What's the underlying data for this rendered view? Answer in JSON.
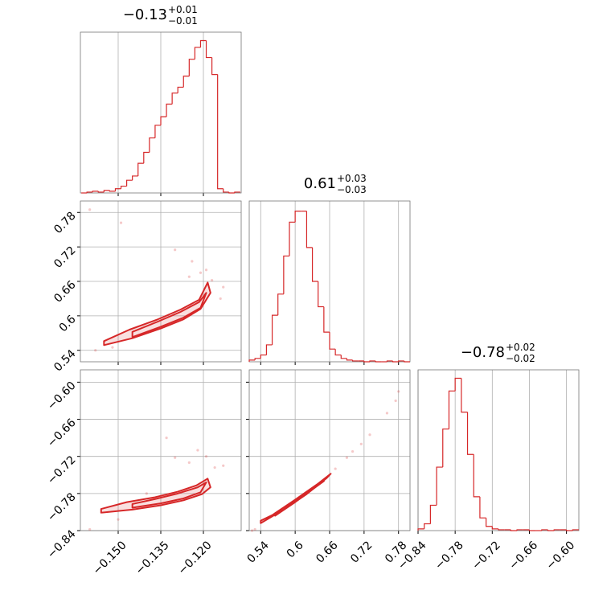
{
  "chart_data": {
    "type": "corner",
    "color": "#d62728",
    "grid": true,
    "params": [
      {
        "title": "−0.13",
        "plus": "+0.01",
        "minus": "−0.01",
        "lim": [
          -0.1633,
          -0.1067
        ],
        "ticks": [
          {
            "value": -0.15,
            "label": "−0.150"
          },
          {
            "value": -0.135,
            "label": "−0.135"
          },
          {
            "value": -0.12,
            "label": "−0.120"
          }
        ],
        "bins": [
          -0.163,
          -0.161,
          -0.159,
          -0.157,
          -0.155,
          -0.153,
          -0.151,
          -0.149,
          -0.147,
          -0.145,
          -0.143,
          -0.141,
          -0.139,
          -0.137,
          -0.135,
          -0.133,
          -0.131,
          -0.129,
          -0.127,
          -0.125,
          -0.123,
          -0.121,
          -0.119,
          -0.117,
          -0.115,
          -0.113,
          -0.111,
          -0.109,
          -0.107
        ],
        "counts": [
          0,
          1,
          2,
          1,
          3,
          2,
          5,
          8,
          15,
          20,
          35,
          48,
          65,
          80,
          90,
          105,
          118,
          125,
          138,
          158,
          172,
          180,
          160,
          140,
          5,
          1,
          0,
          1
        ],
        "ylim": [
          0,
          190
        ]
      },
      {
        "title": "0.61",
        "plus": "+0.03",
        "minus": "−0.03",
        "lim": [
          0.52,
          0.8
        ],
        "ticks": [
          0.54,
          0.6,
          0.66,
          0.72,
          0.78
        ],
        "bins": [
          0.52,
          0.53,
          0.54,
          0.55,
          0.56,
          0.57,
          0.58,
          0.59,
          0.6,
          0.61,
          0.62,
          0.63,
          0.64,
          0.65,
          0.66,
          0.67,
          0.68,
          0.69,
          0.7,
          0.71,
          0.72,
          0.73,
          0.74,
          0.75,
          0.76,
          0.77,
          0.78,
          0.79,
          0.8
        ],
        "counts": [
          2,
          4,
          8,
          20,
          55,
          80,
          125,
          165,
          178,
          178,
          135,
          95,
          65,
          35,
          15,
          8,
          4,
          2,
          1,
          1,
          0,
          1,
          0,
          0,
          1,
          0,
          1,
          0
        ],
        "ylim": [
          0,
          190
        ]
      },
      {
        "title": "−0.78",
        "plus": "+0.02",
        "minus": "−0.02",
        "lim": [
          -0.84,
          -0.58
        ],
        "ticks": [
          {
            "value": -0.84,
            "label": "−0.84"
          },
          {
            "value": -0.78,
            "label": "−0.78"
          },
          {
            "value": -0.72,
            "label": "−0.72"
          },
          {
            "value": -0.66,
            "label": "−0.66"
          },
          {
            "value": -0.6,
            "label": "−0.60"
          }
        ],
        "bins": [
          -0.84,
          -0.83,
          -0.82,
          -0.81,
          -0.8,
          -0.79,
          -0.78,
          -0.77,
          -0.76,
          -0.75,
          -0.74,
          -0.73,
          -0.72,
          -0.71,
          -0.7,
          -0.69,
          -0.68,
          -0.67,
          -0.66,
          -0.65,
          -0.64,
          -0.63,
          -0.62,
          -0.61,
          -0.6,
          -0.59,
          -0.58
        ],
        "counts": [
          2,
          8,
          30,
          75,
          120,
          165,
          180,
          140,
          90,
          40,
          15,
          5,
          2,
          1,
          1,
          0,
          1,
          1,
          0,
          0,
          1,
          0,
          1,
          1,
          0,
          1
        ],
        "ylim": [
          0,
          190
        ]
      }
    ],
    "pairs": [
      {
        "xparam": 0,
        "yparam": 1,
        "contours": [
          {
            "x": [
              -0.155,
              -0.145,
              -0.135,
              -0.127,
              -0.121,
              -0.1175,
              -0.1185,
              -0.1215,
              -0.128,
              -0.136,
              -0.146,
              -0.155
            ],
            "y": [
              0.549,
              0.561,
              0.578,
              0.594,
              0.612,
              0.64,
              0.658,
              0.628,
              0.611,
              0.594,
              0.576,
              0.556
            ]
          },
          {
            "x": [
              -0.145,
              -0.135,
              -0.127,
              -0.121,
              -0.119,
              -0.1215,
              -0.128,
              -0.136,
              -0.145
            ],
            "y": [
              0.563,
              0.581,
              0.597,
              0.614,
              0.64,
              0.624,
              0.607,
              0.59,
              0.572
            ]
          }
        ],
        "points": {
          "x": [
            -0.158,
            -0.152,
            -0.149,
            -0.13,
            -0.125,
            -0.121,
            -0.119,
            -0.117,
            -0.114,
            -0.113,
            -0.124,
            -0.16
          ],
          "y": [
            0.54,
            0.545,
            0.762,
            0.715,
            0.668,
            0.675,
            0.68,
            0.662,
            0.63,
            0.65,
            0.695,
            0.785
          ]
        }
      },
      {
        "xparam": 0,
        "yparam": 2,
        "contours": [
          {
            "x": [
              -0.156,
              -0.145,
              -0.135,
              -0.127,
              -0.1205,
              -0.1175,
              -0.1185,
              -0.1225,
              -0.129,
              -0.137,
              -0.147,
              -0.156
            ],
            "y": [
              -0.811,
              -0.806,
              -0.799,
              -0.791,
              -0.781,
              -0.77,
              -0.756,
              -0.767,
              -0.777,
              -0.786,
              -0.794,
              -0.805
            ]
          },
          {
            "x": [
              -0.145,
              -0.135,
              -0.127,
              -0.121,
              -0.119,
              -0.122,
              -0.129,
              -0.137,
              -0.145
            ],
            "y": [
              -0.803,
              -0.796,
              -0.788,
              -0.778,
              -0.762,
              -0.77,
              -0.78,
              -0.789,
              -0.797
            ]
          }
        ],
        "points": {
          "x": [
            -0.16,
            -0.15,
            -0.133,
            -0.13,
            -0.122,
            -0.119,
            -0.116,
            -0.113,
            -0.125,
            -0.14
          ],
          "y": [
            -0.838,
            -0.822,
            -0.69,
            -0.722,
            -0.71,
            -0.72,
            -0.738,
            -0.735,
            -0.73,
            -0.78
          ]
        }
      },
      {
        "xparam": 1,
        "yparam": 2,
        "contours": [
          {
            "x": [
              0.54,
              0.58,
              0.62,
              0.655,
              0.662,
              0.64,
              0.6,
              0.56,
              0.54
            ],
            "y": [
              -0.828,
              -0.806,
              -0.781,
              -0.755,
              -0.748,
              -0.764,
              -0.79,
              -0.815,
              -0.824
            ]
          },
          {
            "x": [
              0.565,
              0.6,
              0.635,
              0.65,
              0.625,
              0.59,
              0.565
            ],
            "y": [
              -0.816,
              -0.794,
              -0.77,
              -0.76,
              -0.776,
              -0.797,
              -0.812
            ]
          }
        ],
        "points": {
          "x": [
            0.525,
            0.53,
            0.67,
            0.69,
            0.7,
            0.715,
            0.73,
            0.76,
            0.775,
            0.78
          ],
          "y": [
            -0.84,
            -0.838,
            -0.74,
            -0.722,
            -0.712,
            -0.7,
            -0.685,
            -0.65,
            -0.63,
            -0.615
          ]
        }
      }
    ]
  }
}
